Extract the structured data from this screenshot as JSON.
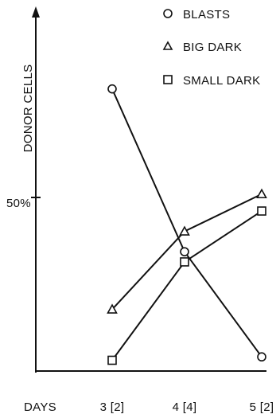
{
  "chart_data": {
    "type": "line",
    "title": "",
    "ylabel": "DONOR CELLS",
    "xlabel": "DAYS",
    "x_categories": [
      "3 [2]",
      "4 [4]",
      "5 [2]"
    ],
    "y_tick_labels": [
      {
        "value": 50,
        "label": "50%"
      }
    ],
    "ylim": [
      0,
      100
    ],
    "legend_position": "top-right",
    "series": [
      {
        "name": "BLASTS",
        "marker": "circle",
        "values": [
          82,
          34,
          3
        ]
      },
      {
        "name": "BIG DARK",
        "marker": "triangle",
        "values": [
          17,
          40,
          51
        ]
      },
      {
        "name": "SMALL DARK",
        "marker": "square",
        "values": [
          2,
          31,
          46
        ]
      }
    ]
  }
}
